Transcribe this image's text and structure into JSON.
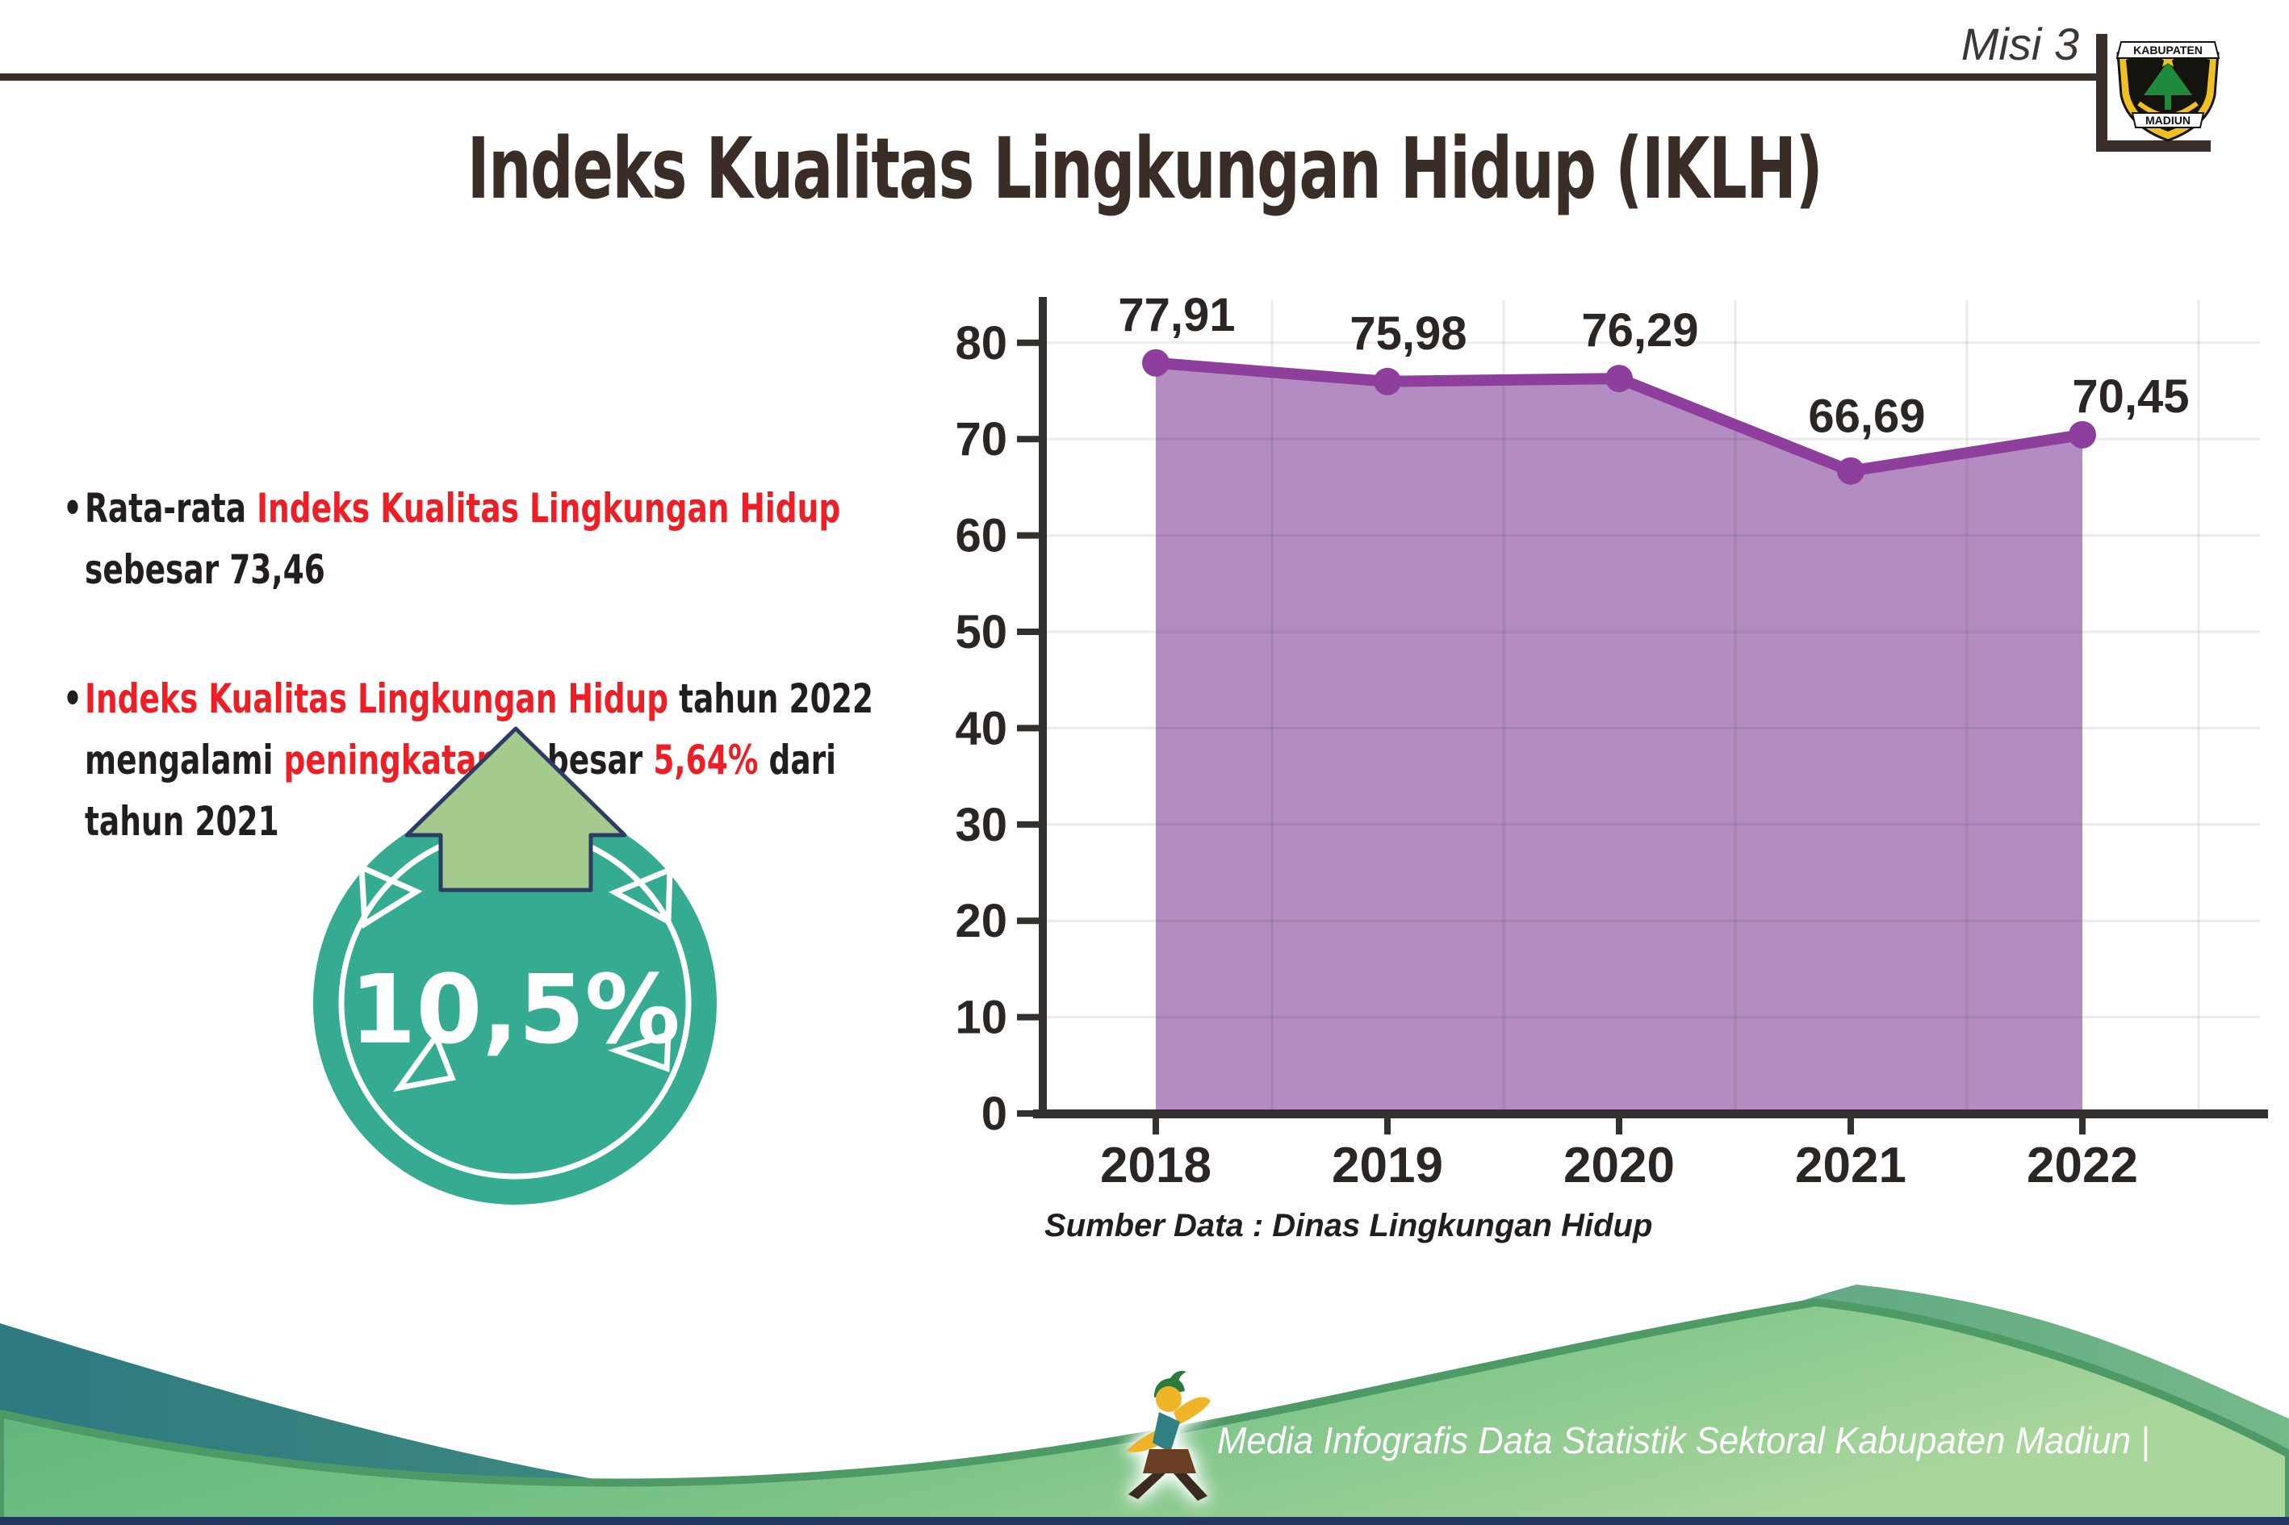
{
  "header": {
    "misi_label": "Misi 3",
    "logo": {
      "top_text": "KABUPATEN",
      "bottom_text": "MADIUN"
    }
  },
  "title": "Indeks Kualitas Lingkungan Hidup (IKLH)",
  "bullets": [
    {
      "lines": [
        [
          {
            "text": "Rata-rata ",
            "color": "dark"
          },
          {
            "text": "Indeks Kualitas Lingkungan Hidup",
            "color": "red"
          }
        ],
        [
          {
            "text": "sebesar 73,46",
            "color": "dark"
          }
        ]
      ]
    },
    {
      "lines": [
        [
          {
            "text": "Indeks Kualitas Lingkungan Hidup",
            "color": "red"
          },
          {
            "text": " tahun 2022",
            "color": "dark"
          }
        ],
        [
          {
            "text": "mengalami ",
            "color": "dark"
          },
          {
            "text": "peningkatan",
            "color": "red"
          },
          {
            "text": " sebesar ",
            "color": "dark"
          },
          {
            "text": "5,64%",
            "color": "red"
          },
          {
            "text": " dari",
            "color": "dark"
          }
        ],
        [
          {
            "text": "tahun 2021",
            "color": "dark"
          }
        ]
      ]
    }
  ],
  "badge": {
    "value": "10,5%",
    "circle_color": "#35ab92",
    "arrow_color": "#a5ca8d"
  },
  "chart_data": {
    "type": "area",
    "title": "",
    "categories": [
      "2018",
      "2019",
      "2020",
      "2021",
      "2022"
    ],
    "series": [
      {
        "name": "IKLH",
        "values": [
          77.91,
          75.98,
          76.29,
          66.69,
          70.45
        ]
      }
    ],
    "value_labels": [
      "77,91",
      "75,98",
      "76,29",
      "66,69",
      "70,45"
    ],
    "y_ticks": [
      0,
      10,
      20,
      30,
      40,
      50,
      60,
      70,
      80
    ],
    "y_tick_labels": [
      "0",
      "10",
      "20",
      "30",
      "40",
      "50",
      "60",
      "70",
      "80"
    ],
    "ylim": [
      0,
      85
    ],
    "grid": true,
    "legend": "none",
    "area_color": "#b38cc1",
    "line_color": "#8d3f9b",
    "source_note": "Sumber Data : Dinas Lingkungan Hidup"
  },
  "footer": {
    "credit": "Media Infografis Data Statistik Sektoral Kabupaten Madiun |",
    "teal_color_left": "#2d7a80",
    "teal_color_right": "#74b988",
    "green_color_left": "#58b378",
    "green_color_right": "#a9d69b",
    "bottom_bar_color": "#22365f"
  }
}
